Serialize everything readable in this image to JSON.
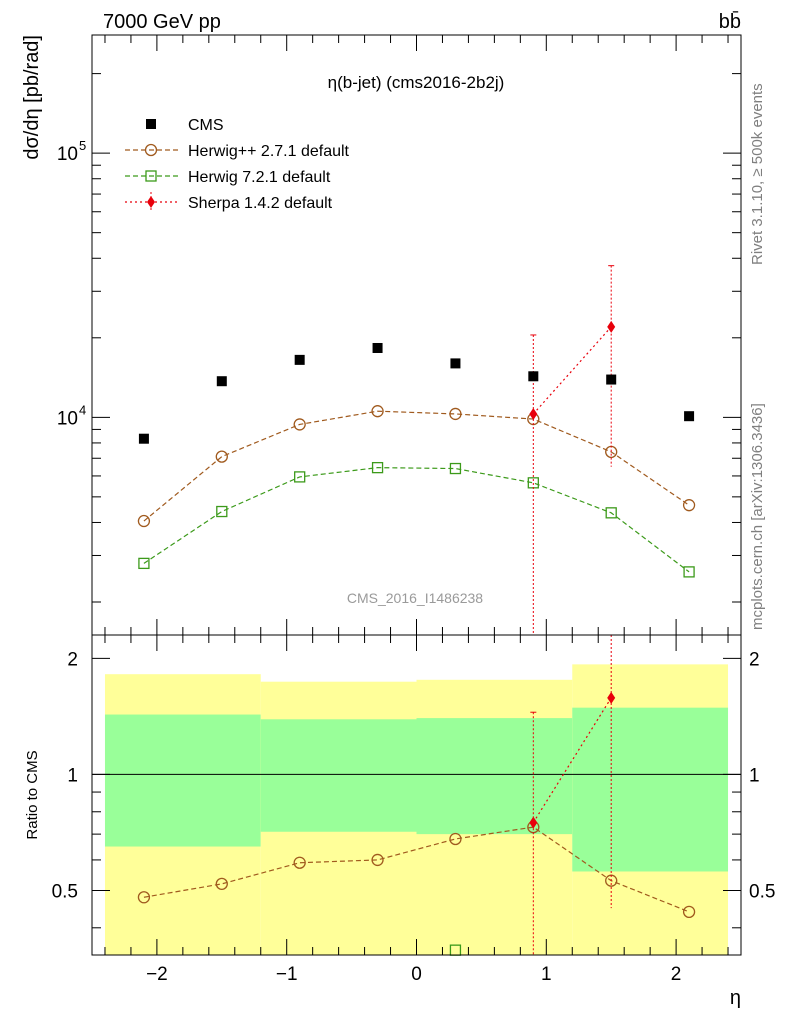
{
  "header": {
    "energy_label": "7000 GeV pp",
    "process_label": "bb̄"
  },
  "side": {
    "rivet_label": "Rivet 3.1.10, ≥ 500k events",
    "mcplots_label": "mcplots.cern.ch [arXiv:1306.3436]"
  },
  "chart_data": [
    {
      "type": "scatter",
      "title": "η(b-jet) (cms2016-2b2j)",
      "watermark": "CMS_2016_I1486238",
      "xlabel": "η",
      "ylabel": "dσ/dη [pb/rad]",
      "xlim": [
        -2.5,
        2.5
      ],
      "ylim": [
        1500,
        280000
      ],
      "yscale": "log",
      "y_ticks": [
        {
          "value": 10000,
          "base": "10",
          "exp": "4"
        },
        {
          "value": 100000,
          "base": "10",
          "exp": "5"
        }
      ],
      "legend_position": "top-left",
      "bin_edges": [
        -2.4,
        -1.2,
        0.0,
        1.2,
        2.4
      ],
      "series": [
        {
          "name": "CMS",
          "style": "data",
          "color": "#000000",
          "x": [
            -2.1,
            -1.5,
            -0.9,
            -0.3,
            0.3,
            0.9,
            1.5,
            2.1
          ],
          "y": [
            8300,
            13700,
            16500,
            18300,
            16000,
            14300,
            13900,
            10100
          ]
        },
        {
          "name": "Herwig++ 2.7.1 default",
          "style": "open-circle",
          "color": "#a05a1e",
          "x": [
            -2.1,
            -1.5,
            -0.9,
            -0.3,
            0.3,
            0.9,
            1.5,
            2.1
          ],
          "y": [
            4050,
            7100,
            9400,
            10550,
            10300,
            9850,
            7400,
            4650
          ]
        },
        {
          "name": "Herwig 7.2.1 default",
          "style": "open-square",
          "color": "#3c9a1a",
          "x": [
            -2.1,
            -1.5,
            -0.9,
            -0.3,
            0.3,
            0.9,
            1.5,
            2.1
          ],
          "y": [
            2800,
            4400,
            5950,
            6450,
            6400,
            5650,
            4350,
            2600
          ]
        },
        {
          "name": "Sherpa 1.4.2 default",
          "style": "filled-diamond",
          "color": "#e8000b",
          "x": [
            0.9,
            1.5
          ],
          "y": [
            10300,
            22000
          ],
          "err_low": [
            1500,
            6500
          ],
          "err_high": [
            20500,
            37500
          ]
        }
      ]
    },
    {
      "type": "scatter",
      "xlabel": "η",
      "ylabel": "Ratio to CMS",
      "xlim": [
        -2.5,
        2.5
      ],
      "ylim": [
        0.34,
        2.3
      ],
      "x_ticks": [
        -2,
        -1,
        0,
        1,
        2
      ],
      "y_ticks": [
        0.5,
        1,
        2
      ],
      "band_edges": [
        -2.4,
        -1.2,
        0.0,
        1.2,
        2.4
      ],
      "band_inner_low": [
        0.65,
        0.71,
        0.7,
        0.56
      ],
      "band_inner_high": [
        1.43,
        1.39,
        1.4,
        1.49
      ],
      "band_outer_low": [
        0.34,
        0.34,
        0.34,
        0.34
      ],
      "band_outer_high": [
        1.82,
        1.74,
        1.76,
        1.93
      ],
      "series": [
        {
          "name": "Herwig++ 2.7.1 default",
          "style": "open-circle",
          "color": "#a05a1e",
          "x": [
            -2.1,
            -1.5,
            -0.9,
            -0.3,
            0.3,
            0.9,
            1.5,
            2.1
          ],
          "y": [
            0.48,
            0.52,
            0.59,
            0.6,
            0.68,
            0.73,
            0.53,
            0.44
          ]
        },
        {
          "name": "Herwig 7.2.1 default",
          "style": "open-square",
          "color": "#3c9a1a",
          "x": [
            0.3
          ],
          "y": [
            0.35
          ]
        },
        {
          "name": "Sherpa 1.4.2 default",
          "style": "filled-diamond",
          "color": "#e8000b",
          "x": [
            0.9,
            1.5
          ],
          "y": [
            0.75,
            1.58
          ],
          "err_low": [
            0.34,
            0.45
          ],
          "err_high": [
            1.45,
            2.4
          ]
        }
      ]
    }
  ]
}
